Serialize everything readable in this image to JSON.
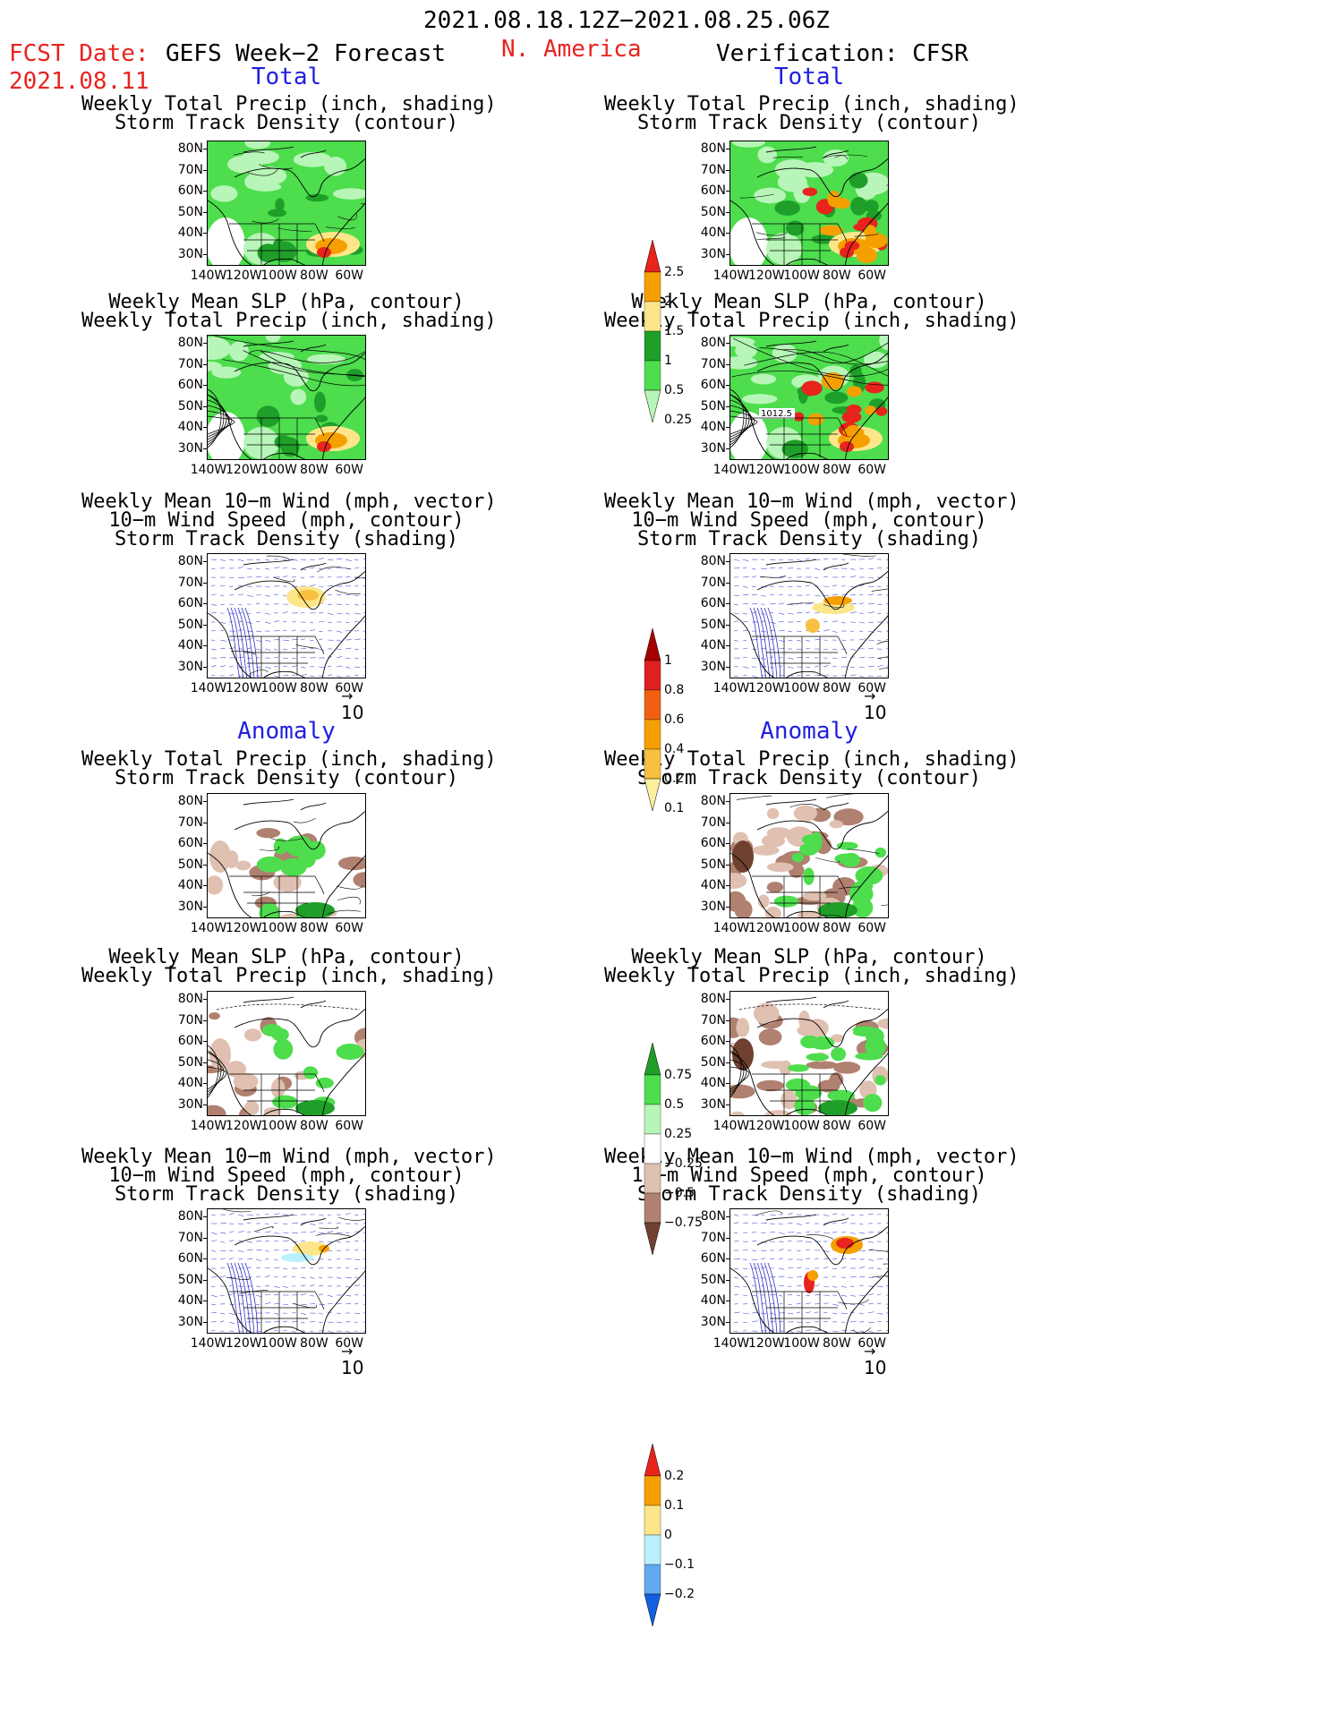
{
  "header": {
    "period": "2021.08.18.12Z−2021.08.25.06Z",
    "fcst_label": "FCST Date:",
    "fcst_date": "2021.08.11",
    "model": "GEFS Week−2 Forecast",
    "region": "N. America",
    "verification": "Verification: CFSR"
  },
  "sections": {
    "total": "Total",
    "anomaly": "Anomaly"
  },
  "titles": {
    "precip_track": [
      "Weekly Total Precip (inch, shading)",
      "Storm Track Density (contour)"
    ],
    "slp_precip": [
      "Weekly Mean SLP (hPa, contour)",
      "Weekly Total Precip (inch, shading)"
    ],
    "wind_track": [
      "Weekly Mean 10−m Wind (mph, vector)",
      "10−m Wind Speed (mph, contour)",
      "Storm Track Density (shading)"
    ]
  },
  "axes": {
    "lat_ticks": [
      "80N",
      "70N",
      "60N",
      "50N",
      "40N",
      "30N"
    ],
    "lon_ticks": [
      "140W",
      "120W",
      "100W",
      "80W",
      "60W"
    ]
  },
  "vector_scale": "10",
  "map_labels": {
    "slp_contour_value": "1012.5"
  },
  "colorbars": {
    "precip_total": {
      "labels": [
        "2.5",
        "2",
        "1.5",
        "1",
        "0.5",
        "0.25"
      ],
      "colors": [
        "#e8241c",
        "#f5a000",
        "#fde68a",
        "#1f9e2a",
        "#4ddd4d",
        "#b8f5b8"
      ]
    },
    "track_total": {
      "labels": [
        "1",
        "0.8",
        "0.6",
        "0.4",
        "0.2",
        "0.1"
      ],
      "colors": [
        "#a40000",
        "#e02020",
        "#f06010",
        "#f5a000",
        "#f8c040",
        "#fff0a0"
      ]
    },
    "precip_anom": {
      "labels": [
        "0.75",
        "0.5",
        "0.25",
        "−0.25",
        "−0.5",
        "−0.75"
      ],
      "colors": [
        "#1f9e2a",
        "#4ddd4d",
        "#b8f5b8",
        "#ffffff",
        "#e0c0b0",
        "#b08070",
        "#704030"
      ]
    },
    "track_anom": {
      "labels": [
        "0.2",
        "0.1",
        "0",
        "−0.1",
        "−0.2"
      ],
      "colors": [
        "#e8241c",
        "#f5a000",
        "#fde68a",
        "#b8f0ff",
        "#60a8f0",
        "#1060e0"
      ]
    }
  }
}
